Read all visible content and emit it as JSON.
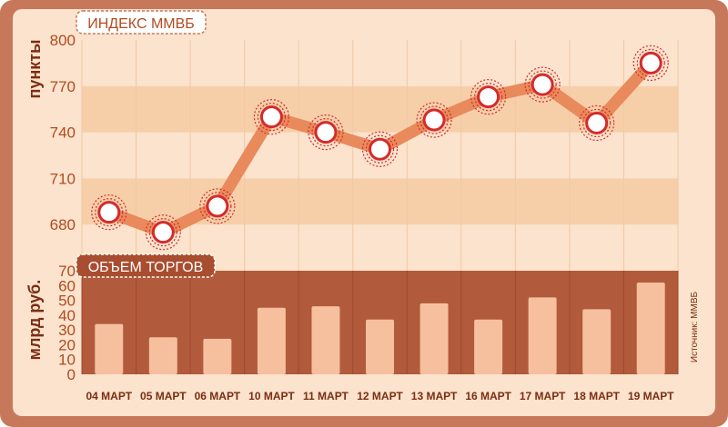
{
  "chart_data": [
    {
      "type": "line",
      "title": "ИНДЕКС ММВБ",
      "ylabel": "пункты",
      "categories": [
        "04 МАРТ",
        "05 МАРТ",
        "06 МАРТ",
        "10 МАРТ",
        "11 МАРТ",
        "12 МАРТ",
        "13 МАРТ",
        "16 МАРТ",
        "17 МАРТ",
        "18 МАРТ",
        "19 МАРТ"
      ],
      "values": [
        688,
        675,
        692,
        750,
        740,
        729,
        748,
        763,
        771,
        746,
        785
      ],
      "ylim": [
        650,
        800
      ],
      "yticks": [
        680,
        710,
        740,
        770,
        800
      ],
      "grid": "horizontal bands"
    },
    {
      "type": "bar",
      "title": "ОБЪЕМ ТОРГОВ",
      "ylabel": "млрд руб.",
      "categories": [
        "04 МАРТ",
        "05 МАРТ",
        "06 МАРТ",
        "10 МАРТ",
        "11 МАРТ",
        "12 МАРТ",
        "13 МАРТ",
        "16 МАРТ",
        "17 МАРТ",
        "18 МАРТ",
        "19 МАРТ"
      ],
      "values": [
        34,
        25,
        24,
        45,
        46,
        37,
        48,
        37,
        52,
        44,
        62
      ],
      "ylim": [
        0,
        70
      ],
      "yticks": [
        0,
        10,
        20,
        30,
        40,
        50,
        60,
        70
      ]
    }
  ],
  "source": "Источник: ММВБ",
  "colors": {
    "frame": "#c8785a",
    "band_dark": "#f6cfa9",
    "band_light": "#fbe3cd",
    "line": "#e98a5c",
    "marker_ring": "#d42b2b",
    "bars_panel": "#b25a3c",
    "bar": "#f6c09e",
    "text": "#7a2e12"
  }
}
